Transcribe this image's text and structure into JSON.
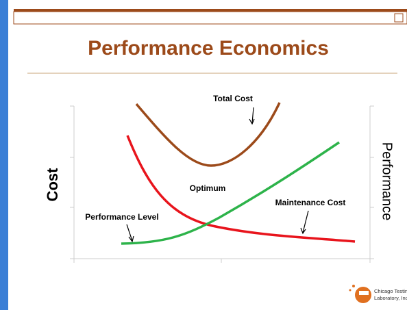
{
  "slide": {
    "title": "Performance Economics",
    "y_axis_left": "Cost",
    "y_axis_right": "Performance",
    "labels": {
      "total_cost": "Total Cost",
      "optimum": "Optimum",
      "maintenance_cost": "Maintenance Cost",
      "performance_level": "Performance Level"
    },
    "logo": {
      "line1": "Chicago Testing",
      "line2": "Laboratory, Inc"
    }
  }
}
